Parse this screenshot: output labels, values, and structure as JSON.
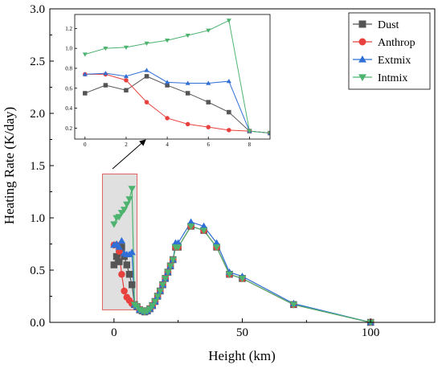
{
  "chart_data": {
    "type": "line",
    "title": "",
    "xlabel": "Height (km)",
    "ylabel": "Heating Rate (K/day)",
    "xlim": [
      -25,
      125
    ],
    "ylim": [
      0,
      3.0
    ],
    "xticks": [
      0,
      50,
      100
    ],
    "yticks": [
      0.0,
      0.5,
      1.0,
      1.5,
      2.0,
      2.5,
      3.0
    ],
    "grid": false,
    "legend_position": "top-right",
    "colors": {
      "Dust": "#555555",
      "Anthrop": "#e8403c",
      "Extmix": "#2f6fd6",
      "Intmix": "#4db36f",
      "highlight_fill": "#c7c7c7",
      "highlight_border": "#e06060"
    },
    "series": [
      {
        "name": "Dust",
        "marker": "square",
        "x": [
          0,
          1,
          2,
          3,
          4,
          5,
          6,
          7,
          8,
          9,
          10,
          11,
          12,
          13,
          14,
          15,
          16,
          17,
          18,
          19,
          20,
          21,
          22,
          23,
          24,
          25,
          30,
          35,
          40,
          45,
          50,
          70,
          100
        ],
        "y": [
          0.55,
          0.63,
          0.58,
          0.72,
          0.63,
          0.55,
          0.46,
          0.36,
          0.17,
          0.15,
          0.12,
          0.11,
          0.1,
          0.11,
          0.13,
          0.16,
          0.2,
          0.25,
          0.3,
          0.36,
          0.42,
          0.48,
          0.54,
          0.6,
          0.72,
          0.72,
          0.92,
          0.88,
          0.72,
          0.46,
          0.42,
          0.17,
          0.0
        ]
      },
      {
        "name": "Anthrop",
        "marker": "circle",
        "x": [
          0,
          1,
          2,
          3,
          4,
          5,
          6,
          7,
          8,
          9,
          10,
          11,
          12,
          13,
          14,
          15,
          16,
          17,
          18,
          19,
          20,
          21,
          22,
          23,
          24,
          25,
          30,
          35,
          40,
          45,
          50,
          70,
          100
        ],
        "y": [
          0.74,
          0.74,
          0.68,
          0.46,
          0.3,
          0.24,
          0.21,
          0.18,
          0.17,
          0.15,
          0.12,
          0.11,
          0.1,
          0.11,
          0.13,
          0.16,
          0.2,
          0.25,
          0.3,
          0.36,
          0.42,
          0.48,
          0.54,
          0.6,
          0.72,
          0.72,
          0.92,
          0.88,
          0.72,
          0.46,
          0.42,
          0.17,
          0.0
        ]
      },
      {
        "name": "Extmix",
        "marker": "triangle-up",
        "x": [
          0,
          1,
          2,
          3,
          4,
          5,
          6,
          7,
          8,
          9,
          10,
          11,
          12,
          13,
          14,
          15,
          16,
          17,
          18,
          19,
          20,
          21,
          22,
          23,
          24,
          25,
          30,
          35,
          40,
          45,
          50,
          70,
          100
        ],
        "y": [
          0.74,
          0.75,
          0.72,
          0.78,
          0.66,
          0.65,
          0.65,
          0.67,
          0.17,
          0.15,
          0.12,
          0.11,
          0.1,
          0.11,
          0.13,
          0.16,
          0.2,
          0.25,
          0.3,
          0.36,
          0.42,
          0.48,
          0.54,
          0.6,
          0.76,
          0.76,
          0.96,
          0.92,
          0.76,
          0.48,
          0.44,
          0.18,
          0.0
        ]
      },
      {
        "name": "Intmix",
        "marker": "triangle-down",
        "x": [
          0,
          1,
          2,
          3,
          4,
          5,
          6,
          7,
          8,
          9,
          10,
          11,
          12,
          13,
          14,
          15,
          16,
          17,
          18,
          19,
          20,
          21,
          22,
          23,
          24,
          25,
          30,
          35,
          40,
          45,
          50,
          70,
          100
        ],
        "y": [
          0.94,
          1.0,
          1.01,
          1.05,
          1.08,
          1.13,
          1.18,
          1.28,
          0.17,
          0.15,
          0.12,
          0.11,
          0.1,
          0.11,
          0.13,
          0.16,
          0.2,
          0.25,
          0.3,
          0.36,
          0.42,
          0.48,
          0.54,
          0.6,
          0.72,
          0.72,
          0.92,
          0.88,
          0.72,
          0.46,
          0.42,
          0.17,
          0.0
        ]
      }
    ],
    "highlight_region": {
      "xlim": [
        -4.5,
        9
      ],
      "ylim": [
        0.12,
        1.42
      ]
    },
    "inset": {
      "xlim": [
        -0.5,
        9
      ],
      "ylim": [
        0.09,
        1.34
      ],
      "xticks": [
        0,
        2,
        4,
        6,
        8
      ],
      "xtick_labels": [
        "0",
        "2",
        "4",
        "6",
        "8"
      ],
      "yticks": [
        0.2,
        0.4,
        0.6,
        0.8,
        1.0,
        1.2
      ],
      "ytick_labels": [
        "0.2",
        "0.4",
        "0.6",
        "0.8",
        "1.0",
        "1.2"
      ],
      "x_range": [
        0,
        9
      ]
    }
  }
}
